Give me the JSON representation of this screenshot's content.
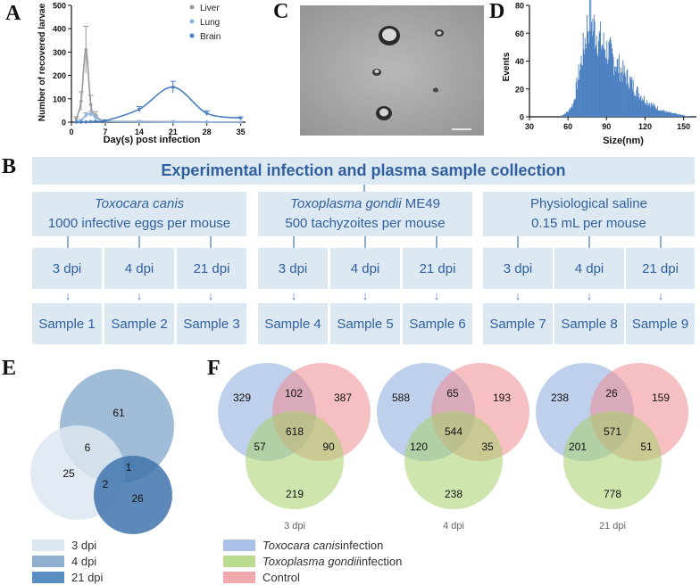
{
  "panels": {
    "a": "A",
    "b": "B",
    "c": "C",
    "d": "D",
    "e": "E",
    "f": "F"
  },
  "chart_data": [
    {
      "type": "line",
      "panel": "A",
      "xlabel": "Day(s) post infection",
      "ylabel": "Number of recovered larvae",
      "xlim": [
        0,
        36
      ],
      "ylim": [
        0,
        500
      ],
      "xticks": [
        "0",
        "7",
        "14",
        "21",
        "28",
        "35"
      ],
      "yticks": [
        "0",
        "100",
        "200",
        "300",
        "400",
        "500"
      ],
      "series": [
        {
          "name": "Liver",
          "color": "#9a9a9a",
          "x": [
            1,
            2,
            3,
            4,
            5,
            7,
            14,
            21,
            28,
            35
          ],
          "y": [
            15,
            90,
            310,
            75,
            30,
            6,
            3,
            2,
            1,
            0
          ],
          "err": [
            8,
            40,
            100,
            40,
            15,
            3,
            2,
            1,
            1,
            0
          ]
        },
        {
          "name": "Lung",
          "color": "#8fb3da",
          "x": [
            1,
            2,
            3,
            4,
            5,
            7,
            14,
            21,
            28,
            35
          ],
          "y": [
            2,
            8,
            30,
            35,
            20,
            4,
            2,
            1,
            1,
            0
          ],
          "err": [
            1,
            4,
            10,
            12,
            8,
            2,
            1,
            1,
            0,
            0
          ]
        },
        {
          "name": "Brain",
          "color": "#4a7fc1",
          "x": [
            1,
            2,
            3,
            4,
            5,
            7,
            14,
            21,
            28,
            35
          ],
          "y": [
            0,
            0,
            1,
            2,
            3,
            6,
            55,
            150,
            38,
            18
          ],
          "err": [
            0,
            0,
            1,
            1,
            1,
            2,
            12,
            25,
            10,
            5
          ]
        }
      ]
    },
    {
      "type": "bar",
      "panel": "D",
      "xlabel": "Size(nm)",
      "ylabel": "Events",
      "xlim": [
        30,
        160
      ],
      "ylim": [
        0,
        80
      ],
      "xticks": [
        "30",
        "60",
        "90",
        "120",
        "150"
      ],
      "yticks": [
        "0",
        "20",
        "40",
        "60",
        "80"
      ],
      "color": "#4a7fc1",
      "size_points": [
        [
          55,
          1
        ],
        [
          60,
          4
        ],
        [
          64,
          10
        ],
        [
          68,
          30
        ],
        [
          72,
          50
        ],
        [
          75,
          66
        ],
        [
          77,
          72
        ],
        [
          80,
          64
        ],
        [
          84,
          56
        ],
        [
          88,
          50
        ],
        [
          92,
          46
        ],
        [
          96,
          40
        ],
        [
          100,
          35
        ],
        [
          104,
          30
        ],
        [
          108,
          26
        ],
        [
          112,
          20
        ],
        [
          116,
          16
        ],
        [
          120,
          12
        ],
        [
          126,
          8
        ],
        [
          132,
          5
        ],
        [
          138,
          3
        ],
        [
          144,
          2
        ],
        [
          150,
          1
        ],
        [
          155,
          0
        ]
      ]
    },
    {
      "type": "venn",
      "panel": "E",
      "sets": [
        {
          "name": "3 dpi",
          "color": "#dde8f1"
        },
        {
          "name": "4 dpi",
          "color": "#8fb0d0"
        },
        {
          "name": "21 dpi",
          "color": "#5a8dc0"
        }
      ],
      "regions": {
        "4_only": "61",
        "3_only": "25",
        "21_only": "26",
        "3_4": "6",
        "4_21": "1",
        "3_21": "2"
      }
    },
    {
      "type": "venn",
      "panel": "F",
      "venns": [
        {
          "label": "3 dpi",
          "a_only": "329",
          "ab": "102",
          "b_only": "387",
          "ac": "57",
          "abc": "618",
          "bc": "90",
          "c_only": "219"
        },
        {
          "label": "4 dpi",
          "a_only": "588",
          "ab": "65",
          "b_only": "193",
          "ac": "120",
          "abc": "544",
          "bc": "35",
          "c_only": "238"
        },
        {
          "label": "21 dpi",
          "a_only": "238",
          "ab": "26",
          "b_only": "159",
          "ac": "201",
          "abc": "571",
          "bc": "51",
          "c_only": "778"
        }
      ]
    }
  ],
  "panel_b": {
    "title": "Experimental infection and plasma sample collection",
    "groups": [
      {
        "name": "Toxocara canis",
        "name_suffix": "",
        "dose": "1000 infective eggs per mouse",
        "dpi": [
          "3 dpi",
          "4 dpi",
          "21 dpi"
        ],
        "samples": [
          "Sample 1",
          "Sample 2",
          "Sample 3"
        ]
      },
      {
        "name": "Toxoplasma gondii",
        "name_suffix": " ME49",
        "dose": "500 tachyzoites per mouse",
        "dpi": [
          "3 dpi",
          "4 dpi",
          "21 dpi"
        ],
        "samples": [
          "Sample 4",
          "Sample 5",
          "Sample 6"
        ]
      },
      {
        "name": "Physiological saline",
        "name_suffix": "",
        "dose": "0.15 mL per mouse",
        "dpi": [
          "3 dpi",
          "4 dpi",
          "21 dpi"
        ],
        "samples": [
          "Sample 7",
          "Sample 8",
          "Sample 9"
        ]
      }
    ],
    "arrow": "↓"
  },
  "legend_e": [
    {
      "label": "3 dpi",
      "color": "#dde8f1"
    },
    {
      "label": "4 dpi",
      "color": "#8fb0d0"
    },
    {
      "label": "21 dpi",
      "color": "#5a8dc0"
    }
  ],
  "legend_f": [
    {
      "italic": "Toxocara canis",
      "rest": " infection",
      "color": "#a9c1e6"
    },
    {
      "italic": "Toxoplasma gondii",
      "rest": " infection",
      "color": "#b9db8e"
    },
    {
      "italic": "",
      "rest": "Control",
      "color": "#f0a8ac"
    }
  ],
  "colors": {
    "box": "#dde9f2",
    "box_text": "#2f5f9e",
    "venn_a": "#8aa9dc",
    "venn_b": "#ee8d92",
    "venn_c": "#a8cf6b"
  }
}
